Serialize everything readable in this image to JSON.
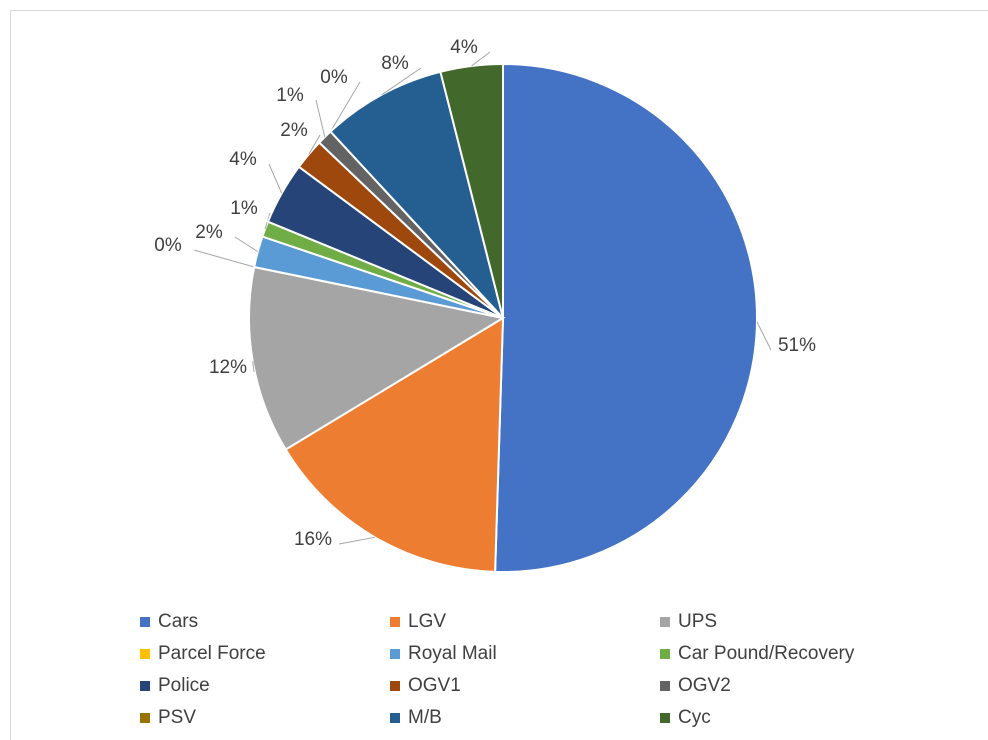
{
  "chart_data": {
    "type": "pie",
    "categories": [
      "Cars",
      "LGV",
      "UPS",
      "Parcel Force",
      "Royal Mail",
      "Car Pound/Recovery",
      "Police",
      "OGV1",
      "OGV2",
      "PSV",
      "M/B",
      "Cyc"
    ],
    "values": [
      51,
      16,
      12,
      0,
      2,
      1,
      4,
      2,
      1,
      0,
      8,
      4
    ],
    "value_labels": [
      "51%",
      "16%",
      "12%",
      "0%",
      "2%",
      "1%",
      "4%",
      "2%",
      "1%",
      "0%",
      "8%",
      "4%"
    ],
    "colors": [
      "#4472c4",
      "#ed7d31",
      "#a5a5a5",
      "#ffc000",
      "#5b9bd5",
      "#70ad47",
      "#264478",
      "#9e480e",
      "#636363",
      "#997300",
      "#255e91",
      "#43682b"
    ],
    "legend": "bottom"
  }
}
